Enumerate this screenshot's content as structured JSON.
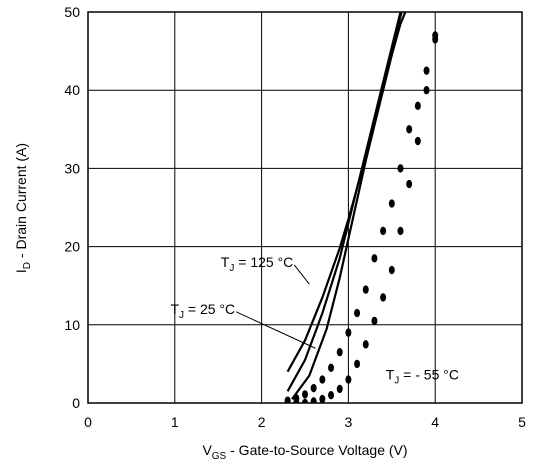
{
  "chart_data": {
    "type": "line",
    "title": "",
    "xlabel": {
      "main": "V",
      "sub": "GS",
      "rest": " - Gate-to-Source Voltage (V)"
    },
    "ylabel": {
      "main": "I",
      "sub": "D",
      "rest": " - Drain Current  (A)"
    },
    "xlim": [
      0,
      5
    ],
    "ylim": [
      0,
      50
    ],
    "x_ticks": [
      0,
      1,
      2,
      3,
      4,
      5
    ],
    "y_ticks": [
      0,
      10,
      20,
      30,
      40,
      50
    ],
    "grid": true,
    "series": [
      {
        "name": "TJ = 125 °C",
        "style": "solid",
        "x": [
          2.3,
          2.5,
          2.7,
          2.9,
          3.0,
          3.1,
          3.2,
          3.3,
          3.4,
          3.5,
          3.6,
          3.67
        ],
        "y": [
          4.0,
          8.0,
          13.5,
          19.8,
          23.5,
          27.5,
          31.5,
          35.8,
          40.3,
          45.0,
          49.5,
          52.0
        ]
      },
      {
        "name": "TJ = 25 °C",
        "style": "solid",
        "x": [
          2.3,
          2.5,
          2.7,
          2.9,
          3.0,
          3.1,
          3.2,
          3.3,
          3.4,
          3.5,
          3.6,
          3.7
        ],
        "y": [
          1.5,
          5.5,
          11.5,
          18.5,
          23.0,
          27.5,
          32.0,
          36.5,
          41.0,
          45.5,
          50.0,
          52.0
        ]
      },
      {
        "name": "TJ = 25 °C",
        "style": "solid",
        "x": [
          2.35,
          2.55,
          2.75,
          2.9,
          3.0,
          3.1,
          3.2,
          3.3,
          3.4,
          3.5,
          3.6,
          3.73
        ],
        "y": [
          0.5,
          3.5,
          9.5,
          16.0,
          21.0,
          26.0,
          31.0,
          35.5,
          40.0,
          44.5,
          48.5,
          52.0
        ]
      },
      {
        "name": "TJ = - 55 °C",
        "style": "dotted",
        "x": [
          2.3,
          2.4,
          2.5,
          2.6,
          2.7,
          2.8,
          2.9,
          3.0,
          3.1,
          3.2,
          3.3,
          3.4,
          3.5,
          3.6,
          3.7,
          3.8,
          3.9,
          4.0
        ],
        "y": [
          0.0,
          0.0,
          0.0,
          0.2,
          0.5,
          1.0,
          1.8,
          3.0,
          5.0,
          7.5,
          10.5,
          13.5,
          17.0,
          22.0,
          28.0,
          33.5,
          40.0,
          46.5
        ]
      },
      {
        "name": "TJ = - 55 °C",
        "style": "dotted",
        "x": [
          2.3,
          2.4,
          2.5,
          2.6,
          2.7,
          2.8,
          2.9,
          3.0,
          3.1,
          3.2,
          3.3,
          3.4,
          3.5,
          3.6,
          3.7,
          3.8,
          3.9,
          4.0
        ],
        "y": [
          0.3,
          0.6,
          1.1,
          1.9,
          3.0,
          4.5,
          6.5,
          9.0,
          11.5,
          14.5,
          18.5,
          22.0,
          25.5,
          30.0,
          35.0,
          38.0,
          42.5,
          47.0
        ]
      }
    ],
    "annotations": [
      {
        "main": "T",
        "sub": "J",
        "rest": " = 125 °C",
        "at": [
          1.53,
          17.4
        ],
        "arrow_to": [
          2.55,
          15.2
        ]
      },
      {
        "main": "T",
        "sub": "J",
        "rest": " = 25 °C",
        "at": [
          0.95,
          11.4
        ],
        "arrow_to": [
          2.62,
          7.0
        ]
      },
      {
        "main": "T",
        "sub": "J",
        "rest": " = - 55 °C",
        "at": [
          3.43,
          3.0
        ],
        "arrow_to": null
      }
    ]
  }
}
